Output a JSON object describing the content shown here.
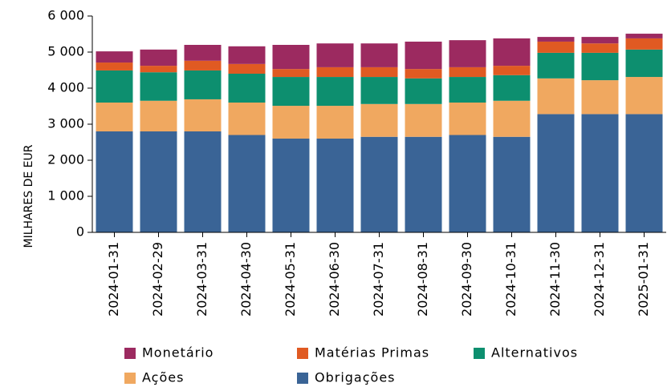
{
  "chart_data": {
    "type": "stacked-bar",
    "y_label": "MILHARES DE EUR",
    "categories": [
      "2024-01-31",
      "2024-02-29",
      "2024-03-31",
      "2024-04-30",
      "2024-05-31",
      "2024-06-30",
      "2024-07-31",
      "2024-08-31",
      "2024-09-30",
      "2024-10-31",
      "2024-11-30",
      "2024-12-31",
      "2025-01-31"
    ],
    "series": [
      {
        "name": "Obrigações",
        "color": "#3a6496",
        "values": [
          2800,
          2800,
          2800,
          2700,
          2600,
          2600,
          2650,
          2650,
          2700,
          2650,
          3280,
          3280,
          3280
        ]
      },
      {
        "name": "Ações",
        "color": "#f0a860",
        "values": [
          800,
          850,
          890,
          900,
          910,
          910,
          910,
          910,
          900,
          1000,
          990,
          940,
          1030
        ]
      },
      {
        "name": "Alternativos",
        "color": "#0d8f6f",
        "values": [
          890,
          790,
          800,
          800,
          800,
          800,
          750,
          710,
          710,
          710,
          710,
          760,
          760
        ]
      },
      {
        "name": "Matérias Primas",
        "color": "#e05a22",
        "values": [
          220,
          180,
          270,
          270,
          220,
          270,
          270,
          260,
          270,
          260,
          310,
          260,
          310
        ]
      },
      {
        "name": "Monetário",
        "color": "#9c2a60",
        "values": [
          310,
          450,
          440,
          490,
          670,
          660,
          660,
          760,
          750,
          760,
          130,
          180,
          130
        ]
      }
    ],
    "ylim": [
      0,
      6000
    ],
    "yticks": [
      0,
      {
        "value": 1000,
        "label": "1 000"
      },
      {
        "value": 2000,
        "label": "2 000"
      },
      {
        "value": 3000,
        "label": "3 000"
      },
      {
        "value": 4000,
        "label": "4 000"
      },
      {
        "value": 5000,
        "label": "5 000"
      },
      {
        "value": 6000,
        "label": "6 000"
      }
    ]
  }
}
